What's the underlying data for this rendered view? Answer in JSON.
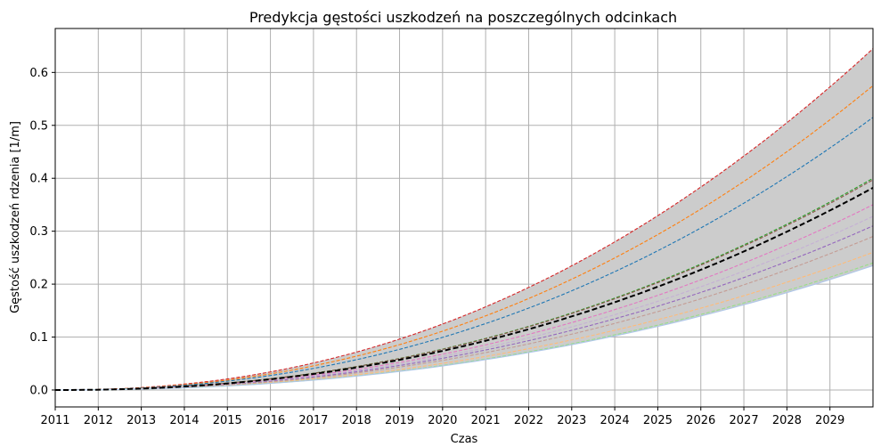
{
  "chart_data": {
    "type": "line",
    "title": "Predykcja gęstości uszkodzeń na poszczególnych odcinkach",
    "xlabel": "Czas",
    "ylabel": "Gęstość uszkodzeń rdzenia [1/m]",
    "xlim": [
      2011,
      2030
    ],
    "ylim": [
      -0.032,
      0.683
    ],
    "x_ticks": [
      "2011",
      "2012",
      "2013",
      "2014",
      "2015",
      "2016",
      "2017",
      "2018",
      "2019",
      "2020",
      "2021",
      "2022",
      "2023",
      "2024",
      "2025",
      "2026",
      "2027",
      "2028",
      "2029"
    ],
    "y_ticks": [
      "0.0",
      "0.1",
      "0.2",
      "0.3",
      "0.4",
      "0.5",
      "0.6"
    ],
    "y_tick_values": [
      0.0,
      0.1,
      0.2,
      0.3,
      0.4,
      0.5,
      0.6
    ],
    "grid": true,
    "curve_shape": "y = value_at_2030 * ((x - 2011) / 19) ^ 2.2",
    "x": [
      2011,
      2015,
      2020,
      2025,
      2030
    ],
    "band": {
      "color": "#cccccc",
      "lower": [
        0.0,
        0.0086,
        0.0527,
        0.1275,
        0.235
      ],
      "upper": [
        0.0,
        0.0236,
        0.1447,
        0.3501,
        0.645
      ]
    },
    "series": [
      {
        "color": "#d62728",
        "values": [
          0.0,
          0.0236,
          0.1447,
          0.3501,
          0.645
        ],
        "style": "dashed"
      },
      {
        "color": "#ff7f0e",
        "values": [
          0.0,
          0.021,
          0.129,
          0.3121,
          0.575
        ],
        "style": "dashed"
      },
      {
        "color": "#1f77b4",
        "values": [
          0.0,
          0.0188,
          0.1155,
          0.2795,
          0.515
        ],
        "style": "dashed"
      },
      {
        "color": "#2ca02c",
        "values": [
          0.0,
          0.0147,
          0.0898,
          0.2172,
          0.4
        ],
        "style": "dashed"
      },
      {
        "color": "#8c564b",
        "values": [
          0.0,
          0.0145,
          0.089,
          0.2154,
          0.397
        ],
        "style": "dashed"
      },
      {
        "color": "#e377c2",
        "values": [
          0.0,
          0.0128,
          0.0785,
          0.19,
          0.35
        ],
        "style": "dashed"
      },
      {
        "color": "#c5b0d5",
        "values": [
          0.0,
          0.012,
          0.0735,
          0.178,
          0.328
        ],
        "style": "dashed"
      },
      {
        "color": "#9467bd",
        "values": [
          0.0,
          0.0113,
          0.0695,
          0.1683,
          0.31
        ],
        "style": "dashed"
      },
      {
        "color": "#c49c94",
        "values": [
          0.0,
          0.0106,
          0.065,
          0.1573,
          0.29
        ],
        "style": "dashed"
      },
      {
        "color": "#ffbb78",
        "values": [
          0.0,
          0.0095,
          0.0583,
          0.1411,
          0.26
        ],
        "style": "dashed"
      },
      {
        "color": "#98df8a",
        "values": [
          0.0,
          0.0088,
          0.0538,
          0.1302,
          0.24
        ],
        "style": "dashed"
      },
      {
        "color": "#aec7e8",
        "values": [
          0.0,
          0.0086,
          0.0527,
          0.1275,
          0.235
        ],
        "style": "solid"
      },
      {
        "color": "#000000",
        "values": [
          0.0,
          0.014,
          0.0858,
          0.2077,
          0.382
        ],
        "style": "dashed",
        "emphasis": true
      }
    ]
  }
}
